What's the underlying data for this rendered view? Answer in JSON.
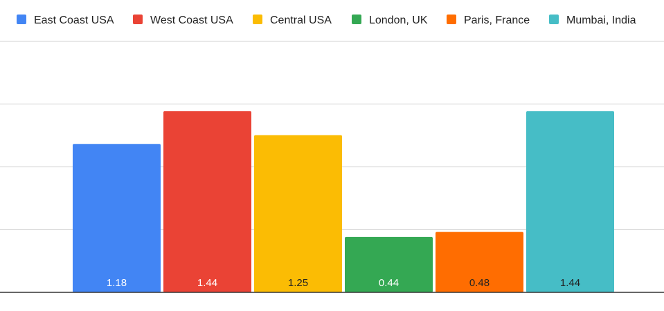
{
  "chart_data": {
    "type": "bar",
    "title": "",
    "xlabel": "",
    "ylabel": "",
    "ylim": [
      0,
      2
    ],
    "grid": true,
    "legend_position": "top",
    "categories": [
      ""
    ],
    "series": [
      {
        "name": "East Coast USA",
        "values": [
          1.18
        ],
        "color": "#4285F4",
        "label_color": "#ffffff",
        "label": "1.18"
      },
      {
        "name": "West Coast USA",
        "values": [
          1.44
        ],
        "color": "#EA4335",
        "label_color": "#ffffff",
        "label": "1.44"
      },
      {
        "name": "Central USA",
        "values": [
          1.25
        ],
        "color": "#FBBC04",
        "label_color": "#222222",
        "label": "1.25"
      },
      {
        "name": "London, UK",
        "values": [
          0.44
        ],
        "color": "#34A853",
        "label_color": "#ffffff",
        "label": "0.44"
      },
      {
        "name": "Paris, France",
        "values": [
          0.48
        ],
        "color": "#FF6D01",
        "label_color": "#222222",
        "label": "0.48"
      },
      {
        "name": "Mumbai, India",
        "values": [
          1.44
        ],
        "color": "#46BDC6",
        "label_color": "#222222",
        "label": "1.44"
      }
    ]
  }
}
